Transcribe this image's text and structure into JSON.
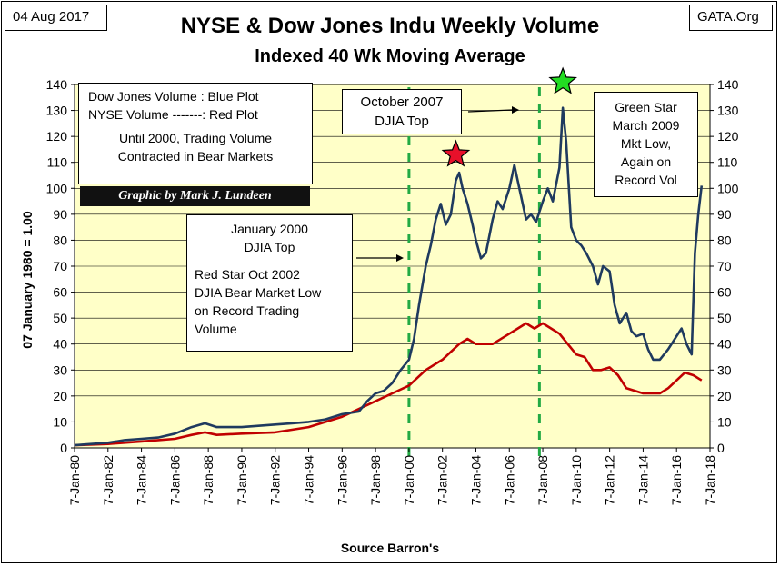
{
  "header": {
    "date": "04 Aug 2017",
    "source_tag": "GATA.Org",
    "title": "NYSE & Dow Jones Indu Weekly Volume",
    "subtitle": "Indexed 40 Wk Moving Average"
  },
  "annotations": {
    "legend_line1": "Dow Jones Volume : Blue Plot",
    "legend_line2": "NYSE Volume -------: Red Plot",
    "legend_line3": "Until 2000, Trading Volume",
    "legend_line4": "Contracted in Bear Markets",
    "credit": "Graphic by Mark J. Lundeen",
    "jan2000_line1": "January 2000",
    "jan2000_line2": "DJIA Top",
    "redstar_line1": "Red Star Oct 2002",
    "redstar_line2": "DJIA Bear Market Low",
    "redstar_line3": "on Record Trading",
    "redstar_line4": "Volume",
    "oct2007_line1": "October 2007",
    "oct2007_line2": "DJIA Top",
    "greenstar_line1": "Green Star",
    "greenstar_line2": "March 2009",
    "greenstar_line3": "Mkt Low,",
    "greenstar_line4": "Again on",
    "greenstar_line5": "Record Vol"
  },
  "colors": {
    "plot_background": "#ffffc8",
    "dow_line": "#1f3a5f",
    "nyse_line": "#c00000",
    "marker_line": "#22aa44",
    "red_star": "#e8102a",
    "green_star": "#22dd22"
  },
  "chart_data": {
    "type": "line",
    "title": "NYSE & Dow Jones Indu Weekly Volume",
    "subtitle": "Indexed 40 Wk Moving Average",
    "xlabel": "Source Barron's",
    "ylabel": "07 January 1980 = 1.00",
    "xlim": [
      1980.0,
      2018.0
    ],
    "ylim": [
      0,
      140
    ],
    "y_ticks": [
      0,
      10,
      20,
      30,
      40,
      50,
      60,
      70,
      80,
      90,
      100,
      110,
      120,
      130,
      140
    ],
    "x_tick_labels": [
      "7-Jan-80",
      "7-Jan-82",
      "7-Jan-84",
      "7-Jan-86",
      "7-Jan-88",
      "7-Jan-90",
      "7-Jan-92",
      "7-Jan-94",
      "7-Jan-96",
      "7-Jan-98",
      "7-Jan-00",
      "7-Jan-02",
      "7-Jan-04",
      "7-Jan-06",
      "7-Jan-08",
      "7-Jan-10",
      "7-Jan-12",
      "7-Jan-14",
      "7-Jan-16",
      "7-Jan-18"
    ],
    "x_tick_years": [
      1980,
      1982,
      1984,
      1986,
      1988,
      1990,
      1992,
      1994,
      1996,
      1998,
      2000,
      2002,
      2004,
      2006,
      2008,
      2010,
      2012,
      2014,
      2016,
      2018
    ],
    "grid": "horizontal",
    "secondary_y_axis": true,
    "vertical_markers": [
      2000.0,
      2007.8
    ],
    "stars": [
      {
        "name": "red-star",
        "x": 2002.8,
        "y": 113
      },
      {
        "name": "green-star",
        "x": 2009.2,
        "y": 141
      }
    ],
    "series": [
      {
        "name": "Dow Jones Volume",
        "x": [
          1980.0,
          1981,
          1982,
          1983,
          1984,
          1985,
          1986,
          1987,
          1987.8,
          1988.5,
          1989,
          1990,
          1991,
          1992,
          1993,
          1994,
          1995,
          1996,
          1997,
          1997.5,
          1998,
          1998.5,
          1999,
          1999.5,
          2000,
          2000.3,
          2000.6,
          2001,
          2001.3,
          2001.6,
          2001.9,
          2002.2,
          2002.5,
          2002.8,
          2003.0,
          2003.2,
          2003.5,
          2003.8,
          2004.0,
          2004.3,
          2004.6,
          2005.0,
          2005.3,
          2005.6,
          2006.0,
          2006.3,
          2006.6,
          2007.0,
          2007.3,
          2007.6,
          2008.0,
          2008.3,
          2008.6,
          2009.0,
          2009.2,
          2009.4,
          2009.7,
          2010.0,
          2010.3,
          2010.6,
          2011.0,
          2011.3,
          2011.6,
          2012.0,
          2012.3,
          2012.6,
          2013.0,
          2013.3,
          2013.6,
          2014.0,
          2014.3,
          2014.6,
          2015.0,
          2015.5,
          2016.0,
          2016.3,
          2016.6,
          2016.9,
          2017.1,
          2017.3,
          2017.5
        ],
        "values": [
          1,
          1.5,
          2,
          3,
          3.5,
          4,
          5.5,
          8,
          9.5,
          8,
          8,
          8,
          8.5,
          9,
          9.5,
          10,
          11,
          13,
          14,
          18,
          21,
          22,
          25,
          30,
          34,
          42,
          55,
          70,
          78,
          88,
          94,
          86,
          90,
          103,
          106,
          100,
          94,
          86,
          80,
          73,
          75,
          88,
          95,
          92,
          100,
          109,
          100,
          88,
          90,
          87,
          95,
          100,
          95,
          108,
          131,
          118,
          85,
          80,
          78,
          75,
          70,
          63,
          70,
          68,
          55,
          48,
          52,
          45,
          43,
          44,
          38,
          34,
          34,
          38,
          43,
          46,
          40,
          36,
          75,
          90,
          101
        ]
      },
      {
        "name": "NYSE Volume",
        "x": [
          1980.0,
          1982,
          1984,
          1986,
          1987,
          1987.8,
          1988.5,
          1990,
          1992,
          1994,
          1996,
          1998,
          1999,
          2000,
          2001,
          2002,
          2003,
          2003.5,
          2004,
          2005,
          2006,
          2006.5,
          2007,
          2007.5,
          2008,
          2008.5,
          2009,
          2009.5,
          2010,
          2010.5,
          2011,
          2011.5,
          2012,
          2012.5,
          2013,
          2014,
          2015,
          2015.5,
          2016,
          2016.5,
          2017,
          2017.5
        ],
        "values": [
          1,
          1.5,
          2.5,
          3.5,
          5,
          6,
          5,
          5.5,
          6,
          8,
          12,
          18,
          21,
          24,
          30,
          34,
          40,
          42,
          40,
          40,
          44,
          46,
          48,
          46,
          48,
          46,
          44,
          40,
          36,
          35,
          30,
          30,
          31,
          28,
          23,
          21,
          21,
          23,
          26,
          29,
          28,
          26
        ]
      }
    ]
  }
}
